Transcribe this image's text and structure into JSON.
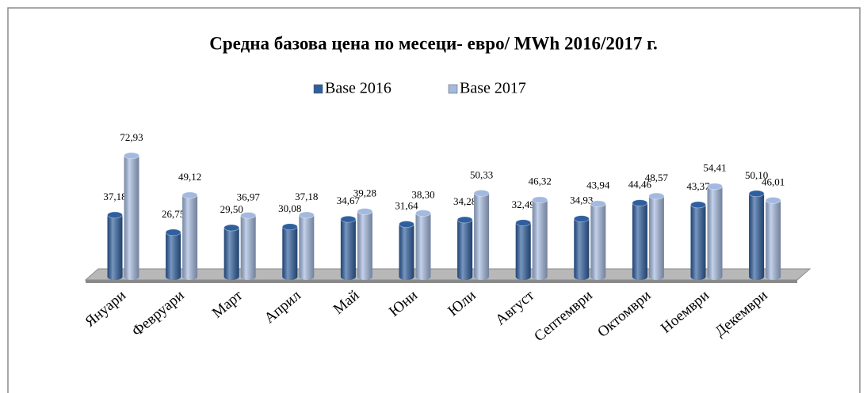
{
  "chart_data": {
    "type": "bar",
    "title": "Средна  базова цена по месеци- евро/ MWh 2016/2017 г.",
    "categories": [
      "Януари",
      "Февруари",
      "Март",
      "Април",
      "Май",
      "Юни",
      "Юли",
      "Август",
      "Септември",
      "Октомври",
      "Ноември",
      "Декември"
    ],
    "series": [
      {
        "name": "Base 2016",
        "color": "#2f5f9e",
        "values": [
          37.18,
          26.75,
          29.5,
          30.08,
          34.67,
          31.64,
          34.28,
          32.49,
          34.93,
          44.46,
          43.37,
          50.1
        ],
        "value_labels": [
          "37,18",
          "26,75",
          "29,50",
          "30,08",
          "34,67",
          "31,64",
          "34,28",
          "32,49",
          "34,93",
          "44,46",
          "43,37",
          "50,10"
        ]
      },
      {
        "name": "Base 2017",
        "color": "#a4b9df",
        "values": [
          72.93,
          49.12,
          36.97,
          37.18,
          39.28,
          38.3,
          50.33,
          46.32,
          43.94,
          48.57,
          54.41,
          46.01
        ],
        "value_labels": [
          "72,93",
          "49,12",
          "36,97",
          "37,18",
          "39,28",
          "38,30",
          "50,33",
          "46,32",
          "43,94",
          "48,57",
          "54,41",
          "46,01"
        ]
      }
    ]
  }
}
